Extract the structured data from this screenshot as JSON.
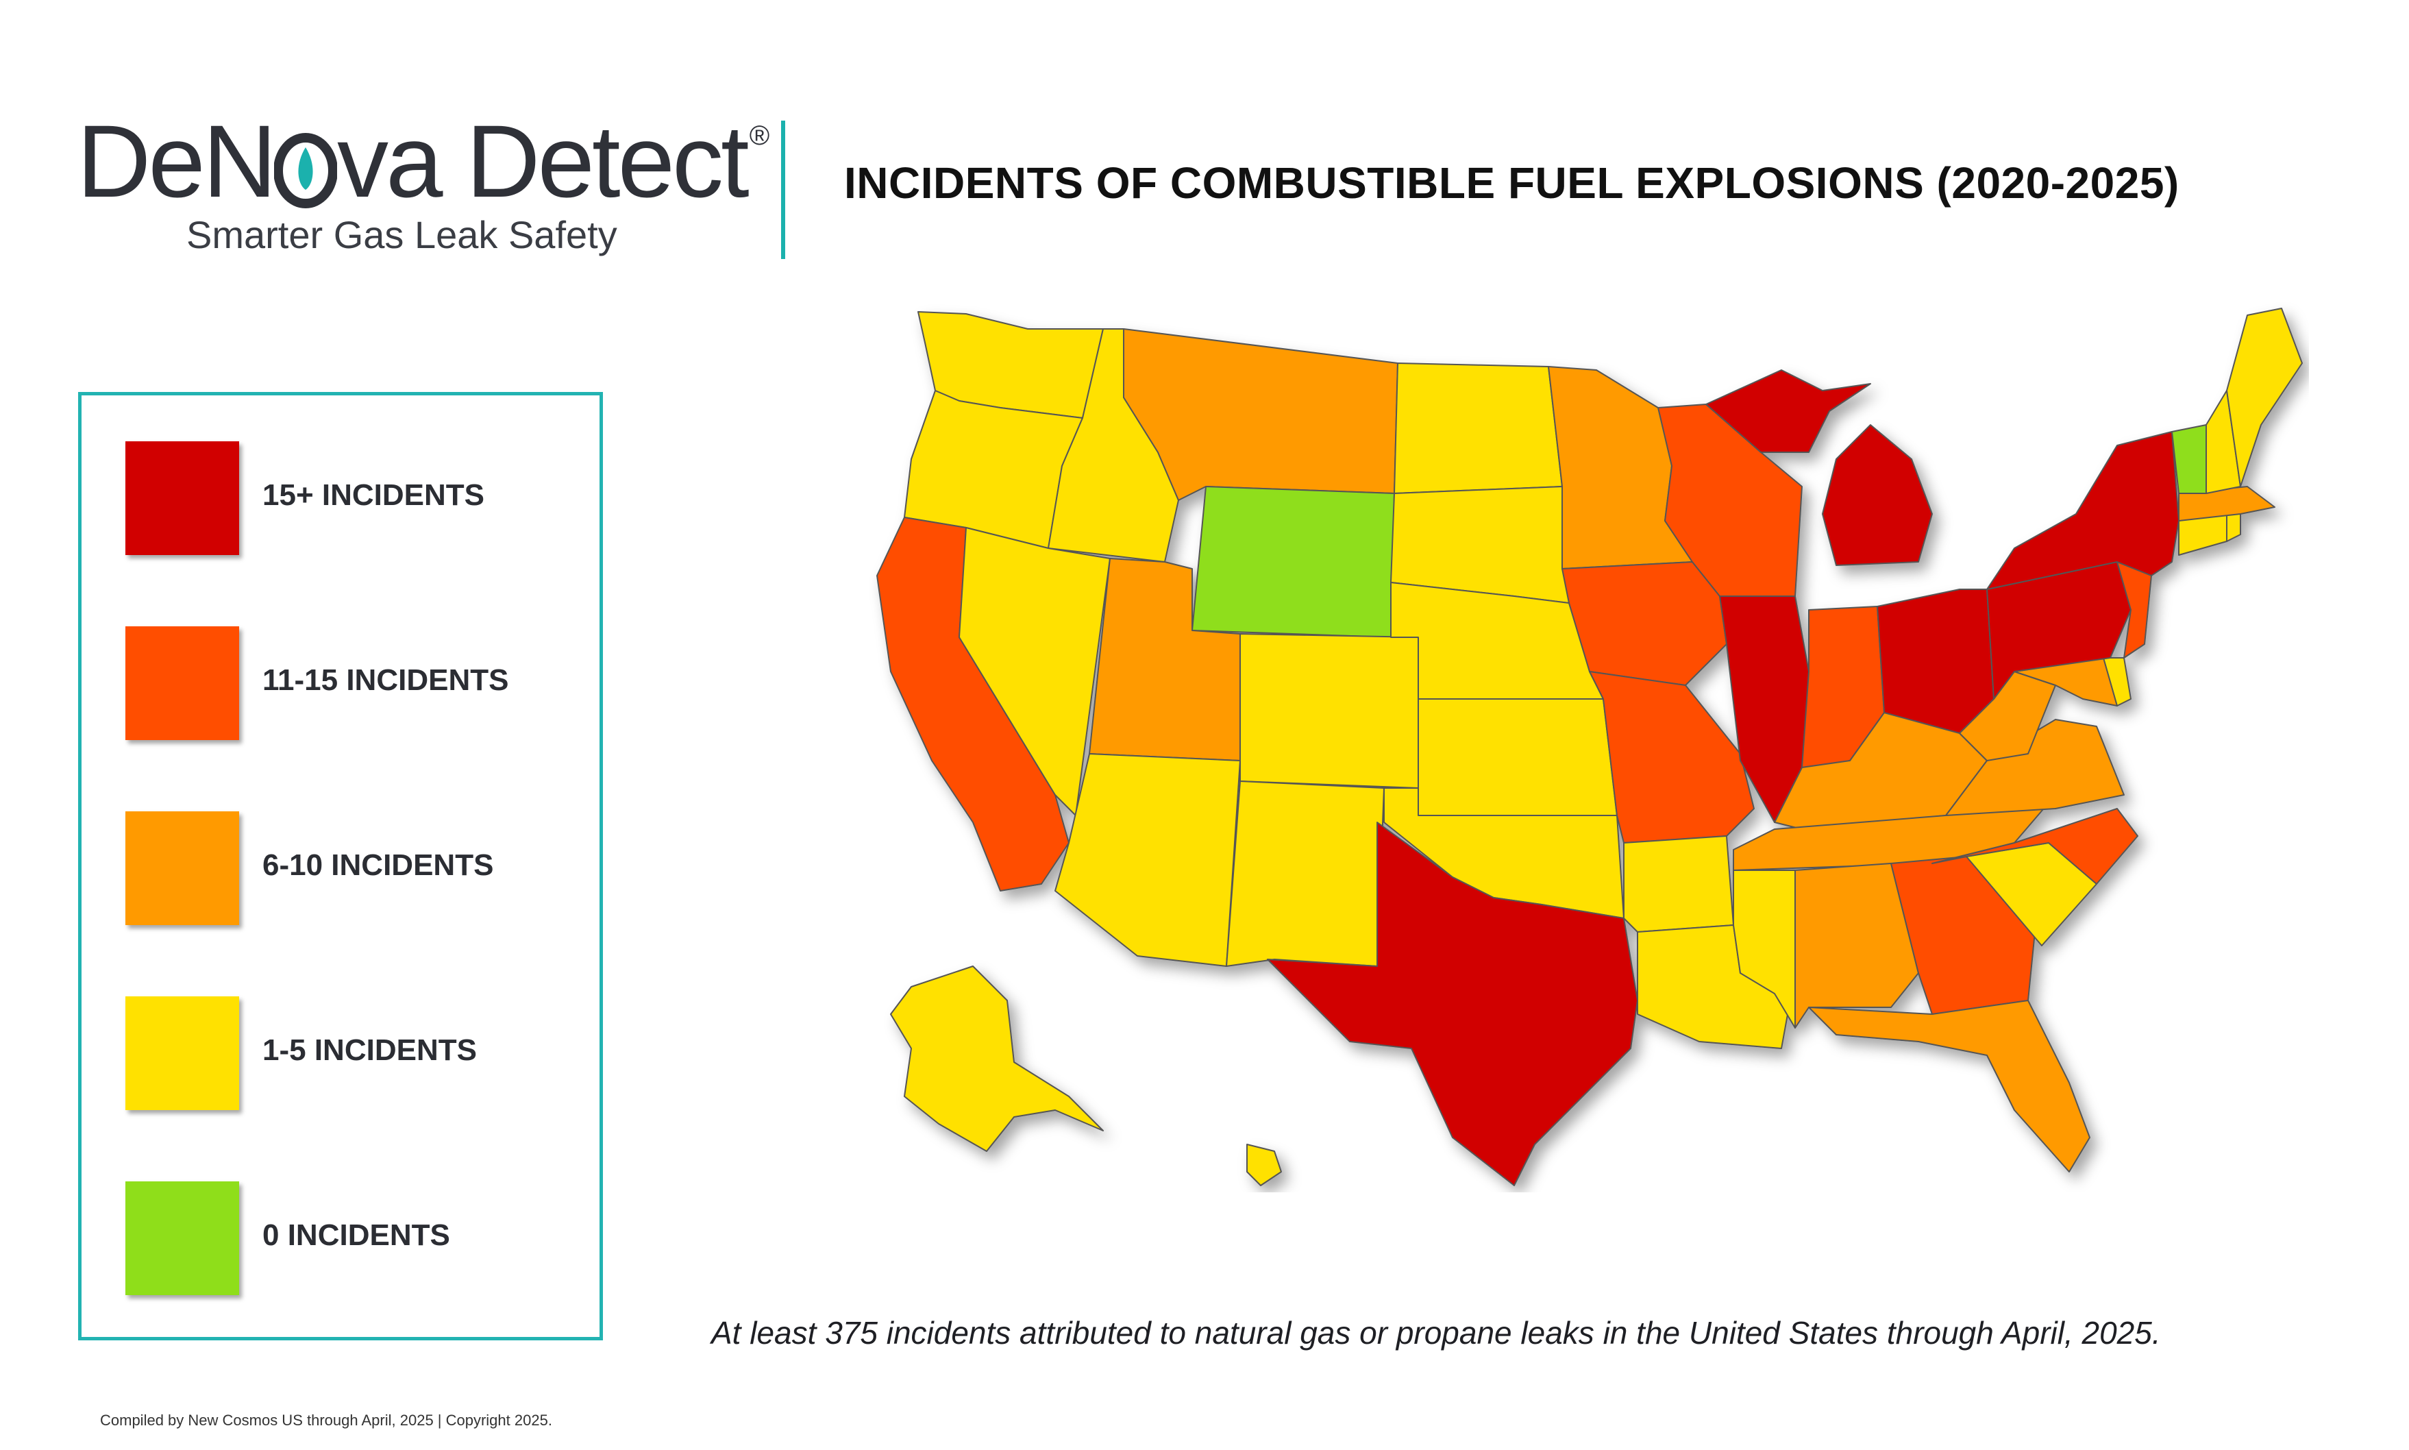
{
  "brand": {
    "name_part1": "DeN",
    "name_part2": "va Detect",
    "registered": "®",
    "tagline": "Smarter Gas Leak Safety",
    "accent_color": "#1bb1ad"
  },
  "title": "INCIDENTS OF COMBUSTIBLE FUEL EXPLOSIONS (2020-2025)",
  "legend": [
    {
      "label": "15+ INCIDENTS",
      "color": "#d10000"
    },
    {
      "label": "11-15 INCIDENTS",
      "color": "#ff4e00"
    },
    {
      "label": "6-10 INCIDENTS",
      "color": "#ff9a00"
    },
    {
      "label": "1-5 INCIDENTS",
      "color": "#ffe100"
    },
    {
      "label": "0 INCIDENTS",
      "color": "#8fde1a"
    }
  ],
  "map": {
    "region": "United States",
    "categories": {
      "15+": [
        "TX",
        "IL",
        "MI",
        "OH",
        "PA",
        "NY"
      ],
      "11-15": [
        "CA",
        "WI",
        "IA",
        "MO",
        "IN",
        "NJ",
        "NC",
        "GA"
      ],
      "6-10": [
        "MT",
        "UT",
        "MN",
        "KY",
        "TN",
        "WV",
        "VA",
        "AL",
        "FL",
        "MD",
        "MA"
      ],
      "1-5": [
        "WA",
        "OR",
        "ID",
        "NV",
        "AZ",
        "NM",
        "CO",
        "ND",
        "SD",
        "NE",
        "KS",
        "OK",
        "AR",
        "LA",
        "MS",
        "SC",
        "DE",
        "CT",
        "RI",
        "NH",
        "ME",
        "AK",
        "HI"
      ],
      "0": [
        "WY",
        "VT"
      ]
    }
  },
  "caption": "At least 375 incidents attributed to natural gas or propane leaks in the United States through April, 2025.",
  "credit": "Compiled by New Cosmos US through April, 2025 | Copyright 2025."
}
